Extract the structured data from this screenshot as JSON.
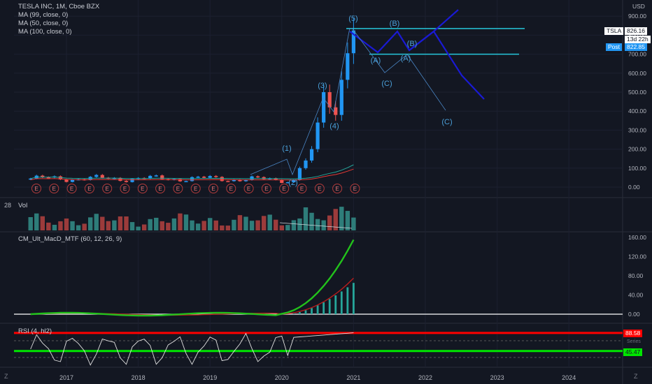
{
  "header": {
    "symbol_line": "TESLA INC, 1M, Cboe BZX",
    "ma1": "MA (99, close, 0)",
    "ma2": "MA (50, close, 0)",
    "ma3": "MA (100, close, 0)",
    "currency": "USD"
  },
  "side_label": "28",
  "price_badges": {
    "ticker": "TSLA",
    "last": "826.16",
    "countdown": "13d 22h",
    "post_label": "Post",
    "post": "822.85"
  },
  "panels": {
    "volume_title": "Vol",
    "macd_title": "CM_Ult_MacD_MTF (60, 12, 26, 9)",
    "rsi_title": "RSI (4, hl2)",
    "rsi_upper_value": "88.58",
    "rsi_lower_value": "45.47",
    "rsi_hidden_label": "Series"
  },
  "footer": {
    "z_left": "Z",
    "z_right": "Z"
  },
  "colors": {
    "background": "#131722",
    "up": "#2196f3",
    "down": "#ef5350",
    "wave": "#1a1ad4",
    "level": "#26c6da",
    "macd": "#22c21b",
    "hist": "#26a69a",
    "rsi_upper": "#ff0000",
    "rsi_lower": "#00e600"
  },
  "chart_data": {
    "type": "candlestick",
    "x_ticks": [
      "2017",
      "2018",
      "2019",
      "2020",
      "2021",
      "2022",
      "2023",
      "2024"
    ],
    "price_axis_ticks": [
      "900.00",
      "800.00",
      "700.00",
      "600.00",
      "500.00",
      "400.00",
      "300.00",
      "200.00",
      "100.00",
      "0.00"
    ],
    "price_range": [
      -30,
      900
    ],
    "macd_axis_ticks": [
      "160.00",
      "120.00",
      "80.00",
      "40.00",
      "0.00"
    ],
    "macd_range": [
      -5,
      160
    ],
    "monthly_closes_first": 45,
    "monthly_closes_last": [
      100,
      140,
      200,
      340,
      500,
      420,
      380,
      565,
      705,
      825
    ],
    "levels": [
      {
        "price": 835,
        "color": "#26c6da"
      },
      {
        "price": 700,
        "color": "#26c6da"
      }
    ],
    "wave_labels": [
      "(1)",
      "(2)",
      "(3)",
      "(4)",
      "(5)",
      "(A)",
      "(B)",
      "(C)",
      "(A)",
      "(B)",
      "(C)"
    ],
    "earnings_marker": "E",
    "earnings_count": 19,
    "macd_last": 155,
    "hist_last": 75,
    "rsi_levels": [
      88.58,
      45.47
    ]
  }
}
